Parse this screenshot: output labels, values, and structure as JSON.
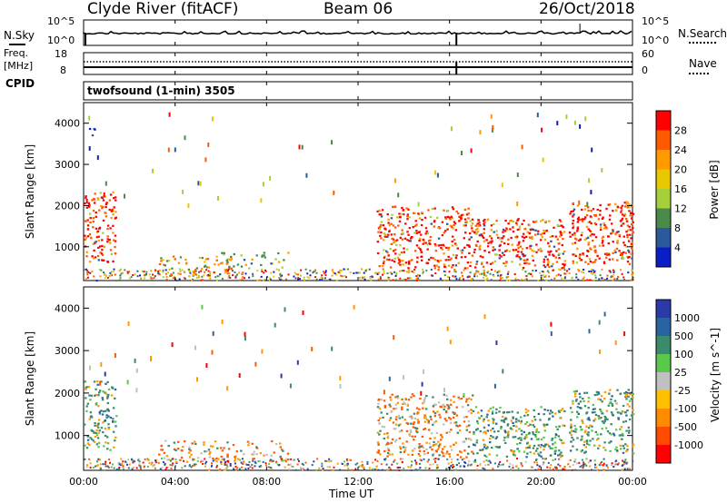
{
  "header": {
    "station": "Clyde River (fitACF)",
    "beam": "Beam 06",
    "date": "26/Oct/2018"
  },
  "top_panels": {
    "nsky_label": "N.Sky",
    "nsearch_label": "N.Search",
    "left_ticks": [
      "10^5",
      "10^0"
    ],
    "right_ticks": [
      "10^5",
      "10^0"
    ],
    "freq_label_1": "Freq.",
    "freq_label_2": "[MHz]",
    "freq_ticks": [
      "18",
      "8"
    ],
    "nave_label": "Nave",
    "nave_ticks": [
      "60",
      "0"
    ],
    "cpid_label": "CPID",
    "cpid_text": "twofsound (1-min) 3505"
  },
  "axes": {
    "ylabel": "Slant Range [km]",
    "xlabel": "Time UT",
    "yticks": [
      "4000",
      "3000",
      "2000",
      "1000"
    ],
    "xticks": [
      "00:00",
      "04:00",
      "08:00",
      "12:00",
      "16:00",
      "20:00",
      "00:00"
    ]
  },
  "power_colorbar": {
    "label": "Power [dB]",
    "ticks": [
      "28",
      "24",
      "20",
      "16",
      "12",
      "8",
      "4"
    ],
    "colors": [
      "#ff0000",
      "#ff5a00",
      "#ff9a00",
      "#e8c800",
      "#a5d03c",
      "#4a8a4a",
      "#2a5a9a",
      "#0a1ec8"
    ]
  },
  "velocity_colorbar": {
    "label": "Velocity [m s^-1]",
    "ticks": [
      "1000",
      "500",
      "100",
      "25",
      "-25",
      "-100",
      "-500",
      "-1000"
    ],
    "colors": [
      "#2a3aa8",
      "#2a64a0",
      "#3a8a6e",
      "#5ac84a",
      "#c0c0c0",
      "#ffc000",
      "#ff8c00",
      "#ff4a00",
      "#ff0000"
    ]
  },
  "chart_data": {
    "type": "heatmap",
    "x_range": [
      "00:00",
      "24:00"
    ],
    "ylim": [
      180,
      4500
    ],
    "xlabel": "Time UT",
    "ylabel": "Slant Range [km]",
    "power_scatter_regions": [
      {
        "t_start": 0.0,
        "t_end": 1.4,
        "range_low": 650,
        "range_high": 2350,
        "dominant": "red/orange",
        "density": 0.75
      },
      {
        "t_start": 0.2,
        "t_end": 0.7,
        "range_low": 3700,
        "range_high": 3950,
        "dominant": "blue",
        "density": 0.5
      },
      {
        "t_start": 3.2,
        "t_end": 6.5,
        "range_low": 300,
        "range_high": 800,
        "dominant": "orange/green",
        "density": 0.55
      },
      {
        "t_start": 6.0,
        "t_end": 9.0,
        "range_low": 500,
        "range_high": 900,
        "dominant": "green",
        "density": 0.4
      },
      {
        "t_start": 12.8,
        "t_end": 16.8,
        "range_low": 500,
        "range_high": 2000,
        "dominant": "red/orange",
        "density": 0.7
      },
      {
        "t_start": 16.8,
        "t_end": 21.0,
        "range_low": 500,
        "range_high": 1700,
        "dominant": "red",
        "density": 0.8
      },
      {
        "t_start": 21.2,
        "t_end": 24.0,
        "range_low": 600,
        "range_high": 2100,
        "dominant": "red/orange",
        "density": 0.8
      }
    ],
    "velocity_scatter_regions": [
      {
        "t_start": 0.0,
        "t_end": 1.4,
        "range_low": 650,
        "range_high": 2300,
        "dominant": "green",
        "density": 0.75
      },
      {
        "t_start": 3.2,
        "t_end": 9.0,
        "range_low": 400,
        "range_high": 900,
        "dominant": "orange/green",
        "density": 0.5
      },
      {
        "t_start": 12.8,
        "t_end": 17.0,
        "range_low": 500,
        "range_high": 2000,
        "dominant": "orange/green",
        "density": 0.7
      },
      {
        "t_start": 17.0,
        "t_end": 21.0,
        "range_low": 500,
        "range_high": 1700,
        "dominant": "green/red",
        "density": 0.75
      },
      {
        "t_start": 21.2,
        "t_end": 24.0,
        "range_low": 600,
        "range_high": 2100,
        "dominant": "green/blue",
        "density": 0.75
      }
    ]
  }
}
